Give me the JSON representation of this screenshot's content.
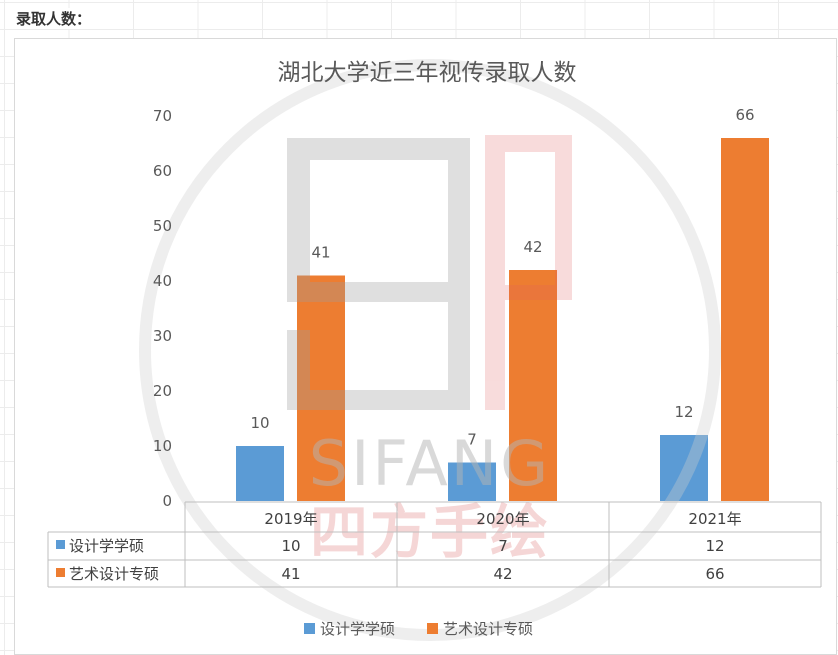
{
  "page": {
    "heading": "录取人数："
  },
  "watermark": {
    "latin": "SIFANG",
    "chinese": "四方手绘"
  },
  "chart_data": {
    "type": "bar",
    "title": "湖北大学近三年视传录取人数",
    "categories": [
      "2019年",
      "2020年",
      "2021年"
    ],
    "series": [
      {
        "name": "设计学学硕",
        "values": [
          10,
          7,
          12
        ],
        "color": "#5B9BD5"
      },
      {
        "name": "艺术设计专硕",
        "values": [
          41,
          42,
          66
        ],
        "color": "#ED7D31"
      }
    ],
    "ylim": [
      0,
      70
    ],
    "yticks": [
      0,
      10,
      20,
      30,
      40,
      50,
      60,
      70
    ],
    "grid": false,
    "data_labels": true,
    "data_table": true,
    "legend": "bottom",
    "text_color": "#595959",
    "table_border_color": "#BFBFBF"
  }
}
